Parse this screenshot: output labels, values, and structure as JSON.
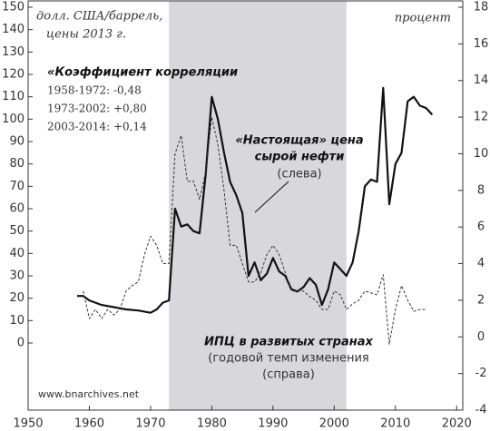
{
  "chart_data": {
    "type": "line",
    "xlim": [
      1950,
      2021
    ],
    "xticks": [
      1950,
      1960,
      1970,
      1980,
      1990,
      2000,
      2010,
      2020
    ],
    "ylim": [
      -30,
      150
    ],
    "yticks": [
      0,
      10,
      20,
      30,
      40,
      50,
      60,
      70,
      80,
      90,
      100,
      110,
      120,
      130,
      140,
      150
    ],
    "y2lim": [
      -4,
      18
    ],
    "y2ticks": [
      -4,
      -2,
      0,
      2,
      4,
      6,
      8,
      10,
      12,
      14,
      16,
      18
    ],
    "shaded_span": [
      1973,
      2002
    ],
    "shade_color": "#d8d8dc",
    "series": [
      {
        "color": "#111111",
        "dashed": false,
        "x": [
          1958,
          1959,
          1960,
          1962,
          1964,
          1966,
          1968,
          1970,
          1971,
          1972,
          1973,
          1974,
          1975,
          1976,
          1977,
          1978,
          1979,
          1980,
          1981,
          1982,
          1983,
          1984,
          1985,
          1986,
          1987,
          1988,
          1989,
          1990,
          1991,
          1992,
          1993,
          1994,
          1995,
          1996,
          1997,
          1998,
          1999,
          2000,
          2001,
          2002,
          2003,
          2004,
          2005,
          2006,
          2007,
          2008,
          2009,
          2010,
          2011,
          2012,
          2013,
          2014,
          2015,
          2016
        ],
        "values": [
          21,
          21,
          19,
          17,
          16,
          15,
          14.5,
          13.5,
          15,
          18,
          19,
          60,
          52,
          53,
          50,
          49,
          75,
          110,
          100,
          85,
          72,
          66,
          58,
          30,
          36,
          28,
          31,
          38,
          32,
          30,
          24,
          23,
          25,
          29,
          26,
          17,
          24,
          36,
          33,
          30,
          36,
          50,
          70,
          73,
          72,
          114,
          62,
          80,
          85,
          108,
          110,
          106,
          105,
          102
        ]
      },
      {
        "color": "#333333",
        "dashed": true,
        "axis": "y2",
        "x": [
          1959,
          1960,
          1961,
          1962,
          1963,
          1964,
          1965,
          1966,
          1967,
          1968,
          1969,
          1970,
          1971,
          1972,
          1973,
          1974,
          1975,
          1976,
          1977,
          1978,
          1979,
          1980,
          1981,
          1982,
          1983,
          1984,
          1985,
          1986,
          1987,
          1988,
          1989,
          1990,
          1991,
          1992,
          1993,
          1994,
          1995,
          1996,
          1997,
          1998,
          1999,
          2000,
          2001,
          2002,
          2003,
          2004,
          2005,
          2006,
          2007,
          2008,
          2009,
          2010,
          2011,
          2012,
          2013,
          2014,
          2015
        ],
        "values": [
          2.5,
          1,
          1.5,
          1,
          1.5,
          1.2,
          1.5,
          2.5,
          2.8,
          3,
          4.5,
          5.5,
          5,
          4,
          4,
          10,
          11,
          8.5,
          8.5,
          7.5,
          9,
          12,
          10.5,
          8,
          5,
          5,
          4,
          3,
          3,
          3.5,
          4.5,
          5,
          4.5,
          3.5,
          2.5,
          2.5,
          2.5,
          2.2,
          2,
          1.5,
          1.5,
          2.5,
          2.3,
          1.5,
          1.8,
          2,
          2.5,
          2.4,
          2.3,
          3.4,
          -0.4,
          1.5,
          2.8,
          2,
          1.4,
          1.5,
          1.5
        ]
      }
    ],
    "left_axis_label": [
      "долл. США/баррель,",
      "цены 2013 г."
    ],
    "right_axis_label": "процент",
    "correlation": {
      "title": "«Коэффициент корреляции",
      "lines": [
        "1958-1972: -0,48",
        "1973-2002: +0,80",
        "2003-2014: +0,14"
      ]
    },
    "oil_label": [
      "«Настоящая» цена",
      "сырой нефти",
      "(слева)"
    ],
    "cpi_label": [
      "ИПЦ в развитых странах",
      "(годовой темп изменения",
      "(справа)"
    ],
    "source": "www.bnarchives.net"
  }
}
